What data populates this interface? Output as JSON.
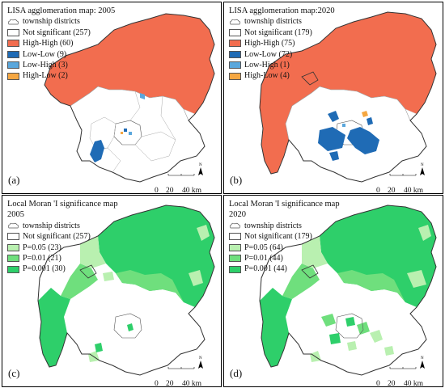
{
  "panels": [
    {
      "id": "a",
      "title": "LISA agglomeration map: 2005",
      "panel_label": "(a)",
      "legend": [
        {
          "label": "township districts",
          "kind": "outline"
        },
        {
          "label": "Not significant (257)",
          "color": "#ffffff"
        },
        {
          "label": "High-High (60)",
          "color": "#f26d4f"
        },
        {
          "label": "Low-Low (9)",
          "color": "#1f6bb5"
        },
        {
          "label": "Low-High (3)",
          "color": "#5aa7dc"
        },
        {
          "label": "High-Low (2)",
          "color": "#f5a742"
        }
      ]
    },
    {
      "id": "b",
      "title": "LISA agglomeration map:2020",
      "panel_label": "(b)",
      "legend": [
        {
          "label": "township districts",
          "kind": "outline"
        },
        {
          "label": "Not significant (179)",
          "color": "#ffffff"
        },
        {
          "label": "High-High (75)",
          "color": "#f26d4f"
        },
        {
          "label": "Low-Low (72)",
          "color": "#1f6bb5"
        },
        {
          "label": "Low-High (1)",
          "color": "#5aa7dc"
        },
        {
          "label": "High-Low (4)",
          "color": "#f5a742"
        }
      ]
    },
    {
      "id": "c",
      "title": "Local Moran 'I significance map",
      "title2": "2005",
      "panel_label": "(c)",
      "legend": [
        {
          "label": "township districts",
          "kind": "outline"
        },
        {
          "label": "Not significant (257)",
          "color": "#ffffff"
        },
        {
          "label": "P=0.05 (23)",
          "color": "#b9f0b0"
        },
        {
          "label": "P=0.01 (21)",
          "color": "#6fdf7d"
        },
        {
          "label": "P=0.001 (30)",
          "color": "#2ecf6a"
        }
      ]
    },
    {
      "id": "d",
      "title": "Local Moran 'I significance map",
      "title2": "2020",
      "panel_label": "(d)",
      "legend": [
        {
          "label": "township districts",
          "kind": "outline"
        },
        {
          "label": "Not significant (179)",
          "color": "#ffffff"
        },
        {
          "label": "P=0.05 (64)",
          "color": "#b9f0b0"
        },
        {
          "label": "P=0.01 (44)",
          "color": "#6fdf7d"
        },
        {
          "label": "P=0.001 (44)",
          "color": "#2ecf6a"
        }
      ]
    }
  ],
  "scale_bar": {
    "t0": "0",
    "t20": "20",
    "t40": "40 km",
    "north": "N"
  }
}
